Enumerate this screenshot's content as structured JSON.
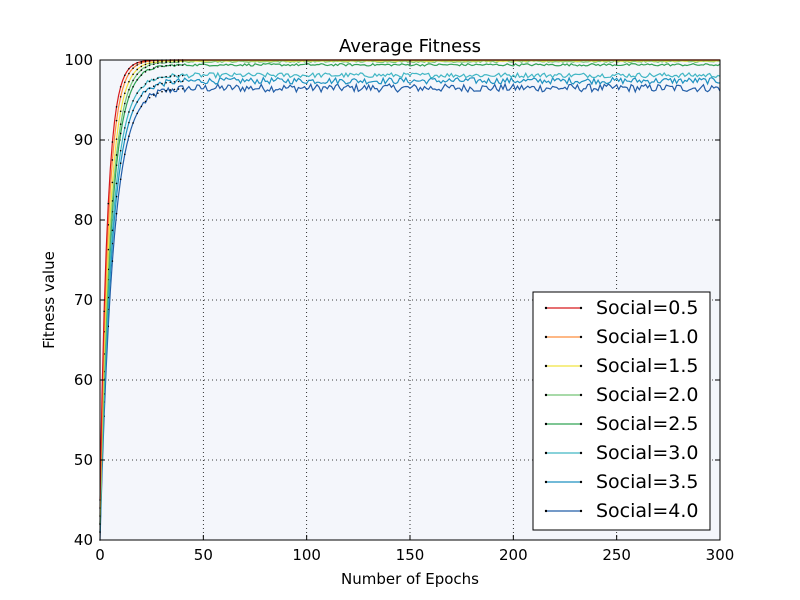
{
  "chart_data": {
    "type": "line",
    "title": "Average Fitness",
    "xlabel": "Number of Epochs",
    "ylabel": "Fitness value",
    "xlim": [
      0,
      300
    ],
    "ylim": [
      40,
      100
    ],
    "x_ticks": [
      0,
      50,
      100,
      150,
      200,
      250,
      300
    ],
    "y_ticks": [
      40,
      50,
      60,
      70,
      80,
      90,
      100
    ],
    "grid": true,
    "legend_position": "lower-right",
    "plot_background": "#f4f6fb",
    "series": [
      {
        "name": "Social=0.5",
        "color": "#d7191c",
        "start": 45,
        "rate": 0.28,
        "plateau": 100.0,
        "noise": 0.0
      },
      {
        "name": "Social=1.0",
        "color": "#fd8d3c",
        "start": 44,
        "rate": 0.25,
        "plateau": 100.0,
        "noise": 0.0
      },
      {
        "name": "Social=1.5",
        "color": "#f0e442",
        "start": 43,
        "rate": 0.22,
        "plateau": 99.9,
        "noise": 0.05
      },
      {
        "name": "Social=2.0",
        "color": "#74c476",
        "start": 42,
        "rate": 0.2,
        "plateau": 99.8,
        "noise": 0.1
      },
      {
        "name": "Social=2.5",
        "color": "#31a354",
        "start": 42,
        "rate": 0.19,
        "plateau": 99.4,
        "noise": 0.15
      },
      {
        "name": "Social=3.0",
        "color": "#41b6c4",
        "start": 41,
        "rate": 0.18,
        "plateau": 98.1,
        "noise": 0.3
      },
      {
        "name": "Social=3.5",
        "color": "#1d91c0",
        "start": 41,
        "rate": 0.17,
        "plateau": 97.4,
        "noise": 0.4
      },
      {
        "name": "Social=4.0",
        "color": "#225ea8",
        "start": 40,
        "rate": 0.16,
        "plateau": 96.5,
        "noise": 0.5
      }
    ]
  }
}
